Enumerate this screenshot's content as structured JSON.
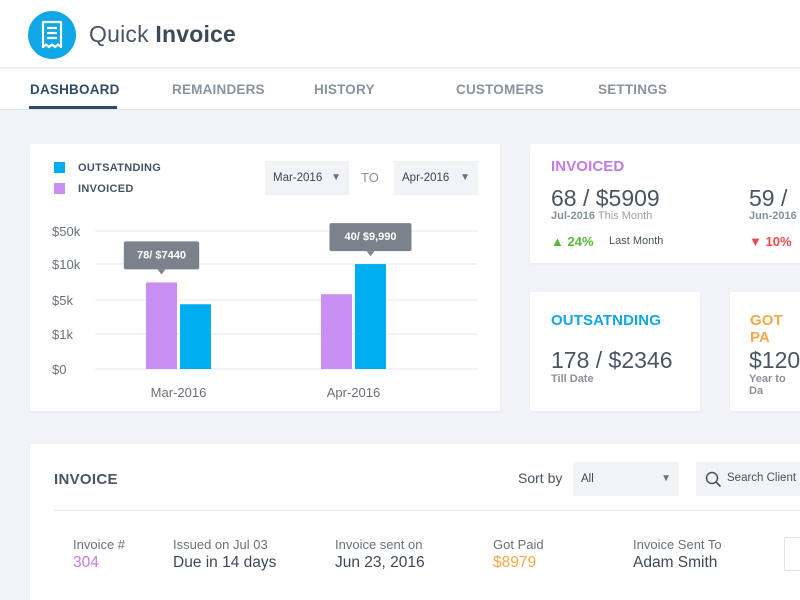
{
  "app": {
    "title_light": "Quick",
    "title_bold": "Invoice",
    "logo_icon": "receipt-icon",
    "accent": "#0fa7e6"
  },
  "nav": {
    "tabs": [
      {
        "label": "DASHBOARD",
        "active": true
      },
      {
        "label": "REMAINDERS"
      },
      {
        "label": "HISTORY"
      },
      {
        "label": "CUSTOMERS"
      },
      {
        "label": "SETTINGS"
      }
    ]
  },
  "chart_card": {
    "from_select": "Mar-2016",
    "to_label": "TO",
    "to_select": "Apr-2016"
  },
  "chart_data": {
    "type": "bar",
    "categories": [
      "Mar-2016",
      "Apr-2016"
    ],
    "series": [
      {
        "name": "INVOICED",
        "color": "#c88ef2",
        "values": [
          7440,
          5800
        ]
      },
      {
        "name": "OUTSATNDING",
        "color": "#00aeef",
        "values": [
          4500,
          9990
        ]
      }
    ],
    "y_ticks": [
      "$50k",
      "$10k",
      "$5k",
      "$1k",
      "$0"
    ],
    "tooltips": [
      {
        "category": "Mar-2016",
        "series": "INVOICED",
        "text": "78/ $7440"
      },
      {
        "category": "Apr-2016",
        "series": "OUTSATNDING",
        "text": "40/ $9,990"
      }
    ],
    "grid": true,
    "legend": "top-left"
  },
  "stats": {
    "invoiced": {
      "title": "INVOICED",
      "color": "#c17ae8",
      "value": "68 / $5909",
      "period": "Jul-2016",
      "period_sub": "This Month",
      "trend": "24%",
      "trend_dir": "up",
      "trend_color": "#57b93a",
      "trend_label": "Last Month",
      "value2": "59 / ",
      "period2": "Jun-2016",
      "trend2": "10%",
      "trend2_dir": "down",
      "trend2_color": "#e84a4a"
    },
    "outstanding": {
      "title": "OUTSATNDING",
      "color": "#0fa7e6",
      "value": "178 / $2346",
      "sub": "Till Date"
    },
    "got_paid": {
      "title": "GOT PA",
      "color": "#f5a948",
      "value": "$120",
      "sub": "Year to Da"
    }
  },
  "invoice_panel": {
    "title": "INVOICE",
    "sort_label": "Sort by",
    "sort_value": "All",
    "search_placeholder": "Search Client",
    "row": {
      "invoice_label": "Invoice #",
      "invoice_value": "304",
      "invoice_color": "#c17ae8",
      "issued_label": "Issued on Jul 03",
      "issued_value": "Due in 14 days",
      "sent_label": "Invoice sent on",
      "sent_value": "Jun 23, 2016",
      "paid_label": "Got Paid",
      "paid_value": "$8979",
      "paid_color": "#f5a948",
      "sent_to_label": "Invoice Sent To",
      "sent_to_value": "Adam Smith"
    }
  }
}
